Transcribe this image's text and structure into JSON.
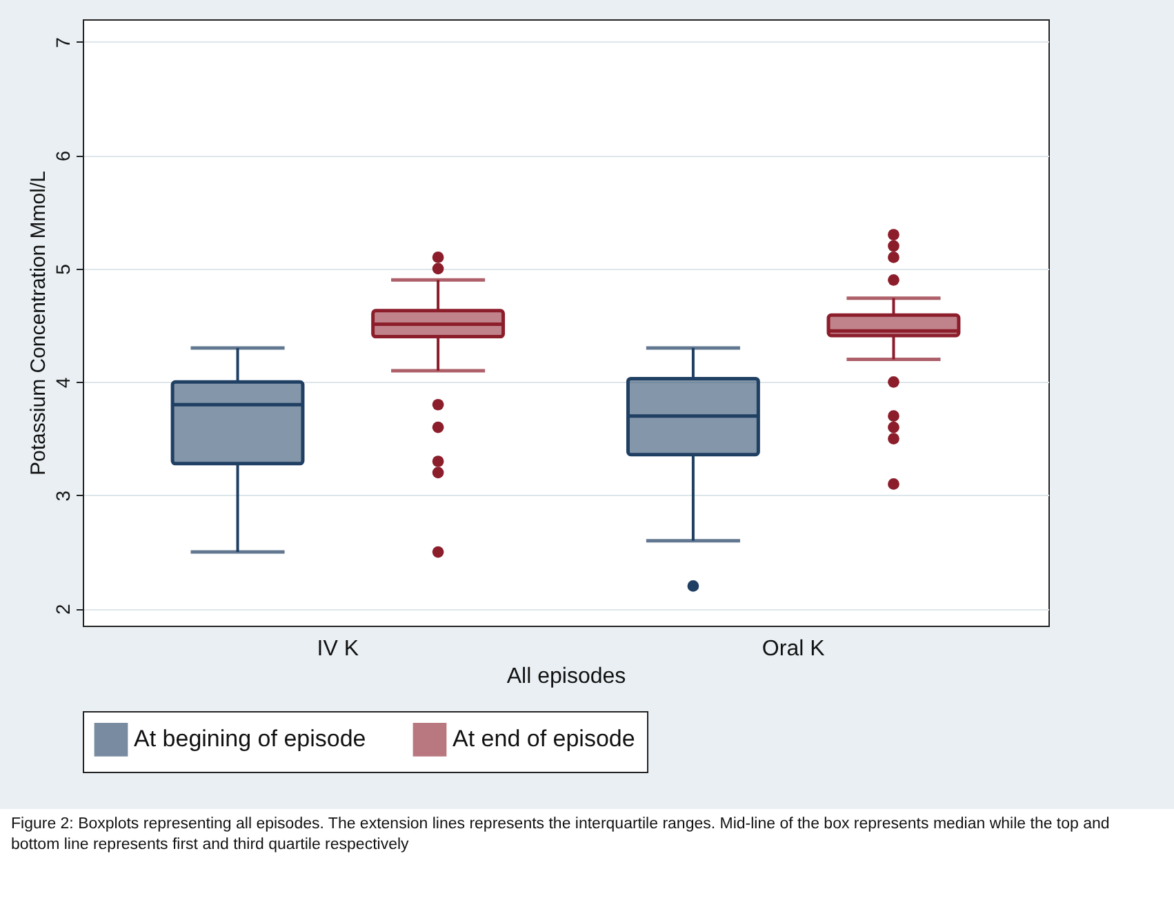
{
  "chart_data": {
    "type": "box",
    "categories": [
      "IV K",
      "Oral K"
    ],
    "xlabel": "All episodes",
    "ylabel": "Potassium Concentration Mmol/L",
    "ylim": [
      1.85,
      7.2
    ],
    "yticks": [
      2,
      3,
      4,
      5,
      6,
      7
    ],
    "grid": "y",
    "legend": "bottom",
    "series": [
      {
        "name": "At begining of episode",
        "color": "#1f3f63",
        "boxes": [
          {
            "low": 2.5,
            "q1": 3.28,
            "median": 3.8,
            "q3": 4.0,
            "high": 4.3
          },
          {
            "low": 2.6,
            "q1": 3.36,
            "median": 3.7,
            "q3": 4.03,
            "high": 4.3,
            "outliers": [
              2.2
            ]
          }
        ]
      },
      {
        "name": "At end of episode",
        "color": "#8c1d2b",
        "boxes": [
          {
            "low": 4.1,
            "q1": 4.4,
            "median": 4.51,
            "q3": 4.63,
            "high": 4.9,
            "outliers": [
              5.1,
              5.0,
              3.8,
              3.6,
              3.3,
              3.2,
              2.5
            ]
          },
          {
            "low": 4.2,
            "q1": 4.41,
            "median": 4.45,
            "q3": 4.59,
            "high": 4.74,
            "outliers": [
              5.3,
              5.2,
              5.1,
              4.9,
              4.0,
              3.7,
              3.6,
              3.5,
              3.1
            ]
          }
        ]
      }
    ],
    "annotations": [
      "Figure 2: Boxplots representing all episodes. The extension lines represents the interquartile ranges. Mid-line of the box represents median while the top and bottom line represents first and third quartile respectively"
    ]
  }
}
